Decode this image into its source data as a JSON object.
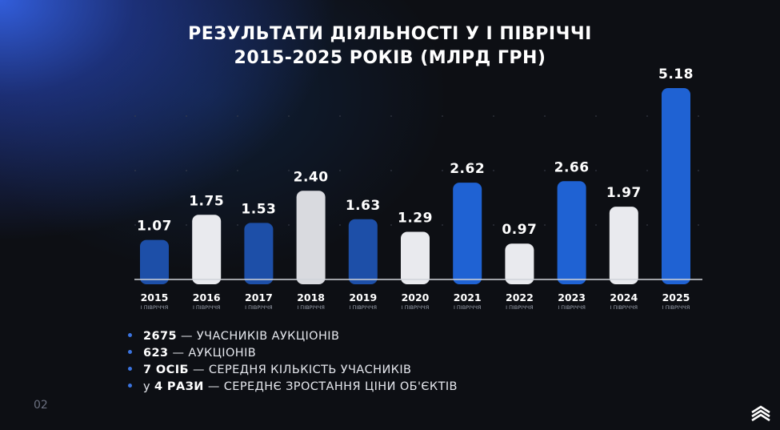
{
  "slide": {
    "title_line1": "РЕЗУЛЬТАТИ ДІЯЛЬНОСТІ  У  І  ПІВРІЧЧІ",
    "title_line2": "2015-2025 РОКІВ (МЛРД ГРН)",
    "page_number": "02",
    "logo_icon": "chevrons-up-icon"
  },
  "chart_data": {
    "type": "bar",
    "title": "РЕЗУЛЬТАТИ ДІЯЛЬНОСТІ  У  І  ПІВРІЧЧІ 2015-2025 РОКІВ (МЛРД ГРН)",
    "categories": [
      "2015",
      "2016",
      "2017",
      "2018",
      "2019",
      "2020",
      "2021",
      "2022",
      "2023",
      "2024",
      "2025"
    ],
    "sublabel": "І ПІВРІЧЧЯ",
    "values": [
      1.07,
      1.75,
      1.53,
      2.4,
      1.63,
      1.29,
      2.62,
      0.97,
      2.66,
      1.97,
      5.18
    ],
    "value_labels": [
      "1.07",
      "1.75",
      "1.53",
      "2.40",
      "1.63",
      "1.29",
      "2.62",
      "0.97",
      "2.66",
      "1.97",
      "5.18"
    ],
    "bar_colors": [
      "#1d4fa8",
      "#e9eaee",
      "#1d4fa8",
      "#d9dadf",
      "#1d4fa8",
      "#e9eaee",
      "#1f62d3",
      "#e9eaee",
      "#1f62d3",
      "#e9eaee",
      "#1f62d3"
    ],
    "ylim": [
      0,
      5.18
    ],
    "grid": true,
    "legend": false
  },
  "stats": [
    {
      "num": "2675",
      "text": "— УЧАСНИКІВ АУКЦІОНІВ",
      "prefix": ""
    },
    {
      "num": "623",
      "text": "— АУКЦІОНІВ",
      "prefix": ""
    },
    {
      "num": "7 ОСІБ",
      "text": "— СЕРЕДНЯ КІЛЬКІСТЬ УЧАСНИКІВ",
      "prefix": ""
    },
    {
      "num": "4 РАЗИ",
      "text": "— СЕРЕДНЄ ЗРОСТАННЯ ЦІНИ ОБ'ЄКТІВ",
      "prefix": "у "
    }
  ]
}
